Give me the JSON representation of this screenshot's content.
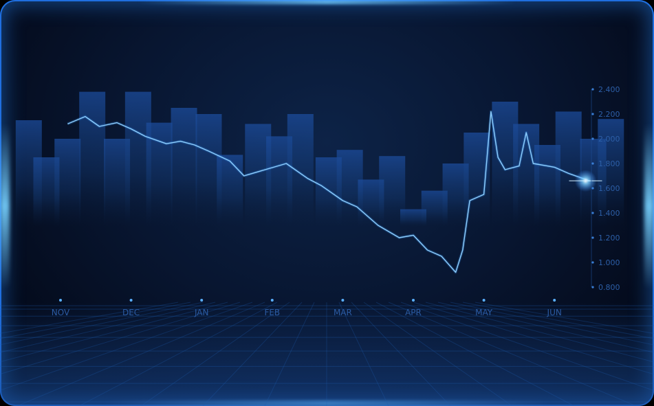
{
  "chart_data": {
    "type": "line",
    "title": "",
    "xlabel": "",
    "ylabel": "",
    "x_tick_labels": [
      "NOV",
      "DEC",
      "JAN",
      "FEB",
      "MAR",
      "APR",
      "MAY",
      "JUN"
    ],
    "y_tick_labels": [
      "0.800",
      "1.000",
      "1.200",
      "1.400",
      "1.600",
      "1.800",
      "2.000",
      "2.200",
      "2.400"
    ],
    "ylim": [
      0.8,
      2.4
    ],
    "grid": false,
    "legend": "none",
    "series": [
      {
        "type": "line",
        "x": [
          0.1,
          0.35,
          0.55,
          0.8,
          1.0,
          1.2,
          1.5,
          1.7,
          1.9,
          2.1,
          2.4,
          2.6,
          2.9,
          3.2,
          3.5,
          3.7,
          4.0,
          4.2,
          4.5,
          4.8,
          5.0,
          5.2,
          5.4,
          5.6,
          5.7,
          5.8,
          6.0,
          6.1,
          6.2,
          6.3,
          6.5,
          6.6,
          6.7,
          6.9,
          7.0,
          7.2,
          7.5
        ],
        "values": [
          2.12,
          2.18,
          2.1,
          2.13,
          2.08,
          2.02,
          1.96,
          1.98,
          1.95,
          1.9,
          1.82,
          1.7,
          1.75,
          1.8,
          1.68,
          1.62,
          1.5,
          1.45,
          1.3,
          1.2,
          1.22,
          1.1,
          1.05,
          0.92,
          1.1,
          1.5,
          1.55,
          2.22,
          1.85,
          1.75,
          1.78,
          2.05,
          1.8,
          1.78,
          1.77,
          1.72,
          1.66
        ]
      },
      {
        "type": "bar",
        "x": [
          -0.45,
          -0.2,
          0.1,
          0.45,
          0.8,
          1.1,
          1.4,
          1.75,
          2.1,
          2.4,
          2.8,
          3.1,
          3.4,
          3.8,
          4.1,
          4.4,
          4.7,
          5.0,
          5.3,
          5.6,
          5.9,
          6.3,
          6.6,
          6.9,
          7.2,
          7.55,
          7.8
        ],
        "values": [
          2.15,
          1.85,
          2.0,
          2.38,
          2.0,
          2.38,
          2.13,
          2.25,
          2.2,
          1.87,
          2.12,
          2.02,
          2.2,
          1.85,
          1.91,
          1.67,
          1.86,
          1.43,
          1.58,
          1.8,
          2.05,
          2.3,
          2.12,
          1.95,
          2.22,
          2.0,
          2.16
        ]
      }
    ]
  }
}
